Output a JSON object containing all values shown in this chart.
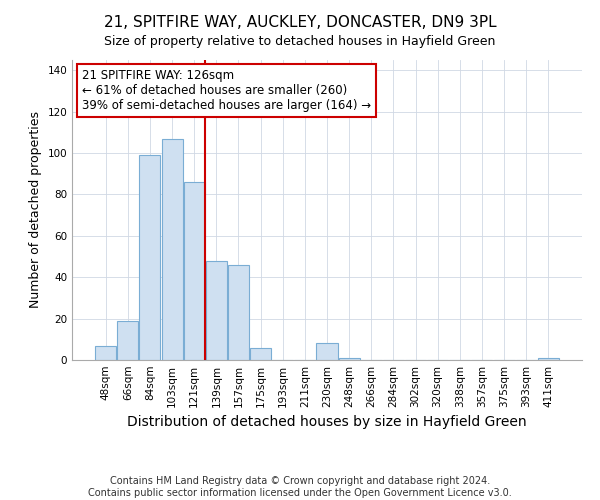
{
  "title": "21, SPITFIRE WAY, AUCKLEY, DONCASTER, DN9 3PL",
  "subtitle": "Size of property relative to detached houses in Hayfield Green",
  "xlabel": "Distribution of detached houses by size in Hayfield Green",
  "ylabel": "Number of detached properties",
  "bar_labels": [
    "48sqm",
    "66sqm",
    "84sqm",
    "103sqm",
    "121sqm",
    "139sqm",
    "157sqm",
    "175sqm",
    "193sqm",
    "211sqm",
    "230sqm",
    "248sqm",
    "266sqm",
    "284sqm",
    "302sqm",
    "320sqm",
    "338sqm",
    "357sqm",
    "375sqm",
    "393sqm",
    "411sqm"
  ],
  "bar_values": [
    7,
    19,
    99,
    107,
    86,
    48,
    46,
    6,
    0,
    0,
    8,
    1,
    0,
    0,
    0,
    0,
    0,
    0,
    0,
    0,
    1
  ],
  "bar_color": "#cfe0f1",
  "bar_edge_color": "#7aadd4",
  "ylim": [
    0,
    145
  ],
  "yticks": [
    0,
    20,
    40,
    60,
    80,
    100,
    120,
    140
  ],
  "vline_color": "#cc0000",
  "annotation_title": "21 SPITFIRE WAY: 126sqm",
  "annotation_line1": "← 61% of detached houses are smaller (260)",
  "annotation_line2": "39% of semi-detached houses are larger (164) →",
  "annotation_box_color": "#ffffff",
  "annotation_box_edge_color": "#cc0000",
  "footnote1": "Contains HM Land Registry data © Crown copyright and database right 2024.",
  "footnote2": "Contains public sector information licensed under the Open Government Licence v3.0.",
  "background_color": "#ffffff",
  "title_fontsize": 11,
  "subtitle_fontsize": 9,
  "xlabel_fontsize": 10,
  "ylabel_fontsize": 9,
  "tick_fontsize": 7.5,
  "annotation_fontsize": 8.5,
  "footnote_fontsize": 7
}
